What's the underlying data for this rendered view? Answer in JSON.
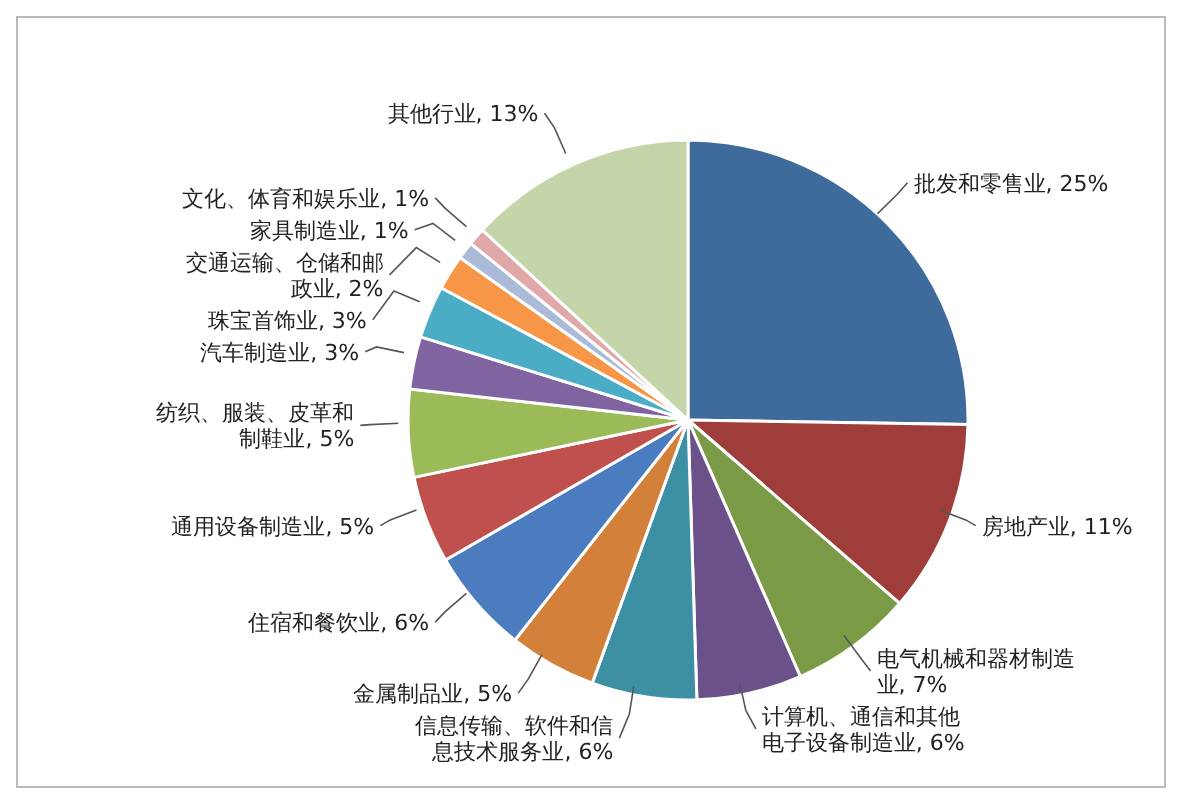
{
  "chart_data": {
    "type": "pie",
    "categories": [
      "批发和零售业",
      "房地产业",
      "电气机械和器材制造业",
      "计算机、通信和其他电子设备制造业",
      "信息传输、软件和信息技术服务业",
      "金属制品业",
      "住宿和餐饮业",
      "通用设备制造业",
      "纺织、服装、皮革和制鞋业",
      "汽车制造业",
      "珠宝首饰业",
      "交通运输、仓储和邮政业",
      "家具制造业",
      "文化、体育和娱乐业",
      "其他行业"
    ],
    "values": [
      25,
      11,
      7,
      6,
      6,
      5,
      6,
      5,
      5,
      3,
      3,
      2,
      1,
      1,
      13
    ],
    "value_labels": [
      "25%",
      "11%",
      "7%",
      "6%",
      "6%",
      "5%",
      "6%",
      "5%",
      "5%",
      "3%",
      "3%",
      "2%",
      "1%",
      "1%",
      "13%"
    ],
    "colors": [
      "#3e6a9c",
      "#9e3d3a",
      "#7b9a45",
      "#6a518a",
      "#3d8fa3",
      "#d2803a",
      "#4a7cbf",
      "#c0504d",
      "#9bbb59",
      "#8064a2",
      "#4bacc6",
      "#f79646",
      "#aabad7",
      "#e0a8a8",
      "#c4d6a9"
    ],
    "legend": false
  }
}
